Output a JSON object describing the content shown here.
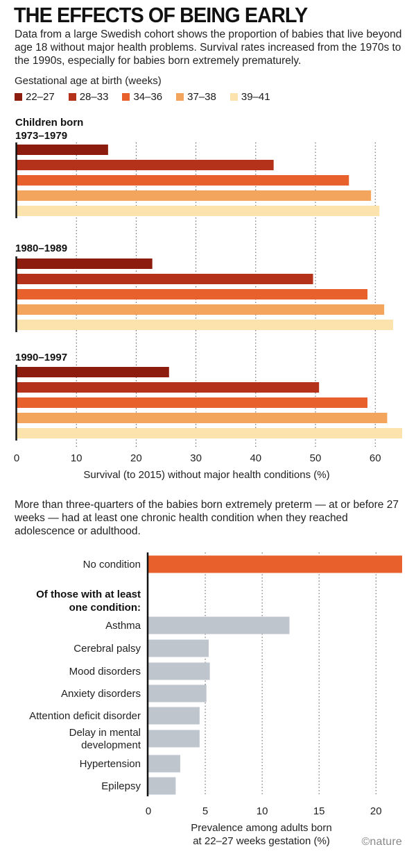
{
  "header": {
    "title": "THE EFFECTS OF BEING EARLY",
    "intro": "Data from a large Swedish cohort shows the proportion of babies that live beyond age 18 without major health problems. Survival rates increased from the 1970s to the 1990s, especially for babies born extremely prematurely.",
    "legend_title": "Gestational age at birth (weeks)"
  },
  "legend": [
    {
      "label": "22–27",
      "color": "#8c1d0e"
    },
    {
      "label": "28–33",
      "color": "#b5321a"
    },
    {
      "label": "34–36",
      "color": "#e8612c"
    },
    {
      "label": "37–38",
      "color": "#f3a55d"
    },
    {
      "label": "39–41",
      "color": "#fce2ad"
    }
  ],
  "second_paragraph": "More than three-quarters of the babies born extremely preterm — at or before 27 weeks — had at least one chronic health condition when they reached adolescence or adulthood.",
  "credit": "©nature",
  "chart_data": [
    {
      "type": "bar",
      "orientation": "horizontal",
      "series_labels": [
        "22–27",
        "28–33",
        "34–36",
        "37–38",
        "39–41"
      ],
      "colors": [
        "#8c1d0e",
        "#b5321a",
        "#e8612c",
        "#f3a55d",
        "#fce2ad"
      ],
      "groups": [
        {
          "label_lines": [
            "Children born",
            "1973–1979"
          ],
          "values": [
            15.3,
            43.0,
            55.6,
            59.3,
            60.7
          ]
        },
        {
          "label_lines": [
            "1980–1989"
          ],
          "values": [
            22.7,
            49.6,
            58.7,
            61.5,
            63.0
          ]
        },
        {
          "label_lines": [
            "1990–1997"
          ],
          "values": [
            25.5,
            50.6,
            58.7,
            62.0,
            64.5
          ]
        }
      ],
      "xlabel": "Survival (to 2015) without major health conditions (%)",
      "xlim": [
        0,
        64.5
      ],
      "xticks": [
        0,
        10,
        20,
        30,
        40,
        50,
        60
      ],
      "grid": "dotted vertical"
    },
    {
      "type": "bar",
      "orientation": "horizontal",
      "items": [
        {
          "label": "No condition",
          "value": 22.3,
          "color": "#e8612c"
        },
        {
          "label": "Asthma",
          "value": 12.4,
          "color": "#bfc5cc"
        },
        {
          "label": "Cerebral palsy",
          "value": 5.3,
          "color": "#bfc5cc"
        },
        {
          "label": "Mood disorders",
          "value": 5.4,
          "color": "#bfc5cc"
        },
        {
          "label": "Anxiety disorders",
          "value": 5.1,
          "color": "#bfc5cc"
        },
        {
          "label": "Attention deficit disorder",
          "value": 4.5,
          "color": "#bfc5cc"
        },
        {
          "label": "Delay in mental development",
          "value": 4.5,
          "color": "#bfc5cc"
        },
        {
          "label": "Hypertension",
          "value": 2.8,
          "color": "#bfc5cc"
        },
        {
          "label": "Epilepsy",
          "value": 2.4,
          "color": "#bfc5cc"
        }
      ],
      "subheading": "Of those with at least one condition:",
      "xlabel": "Prevalence among adults born at 22–27 weeks gestation (%)",
      "xlim": [
        0,
        22.3
      ],
      "xticks": [
        0,
        5,
        10,
        15,
        20
      ],
      "grid": "dotted vertical"
    }
  ]
}
